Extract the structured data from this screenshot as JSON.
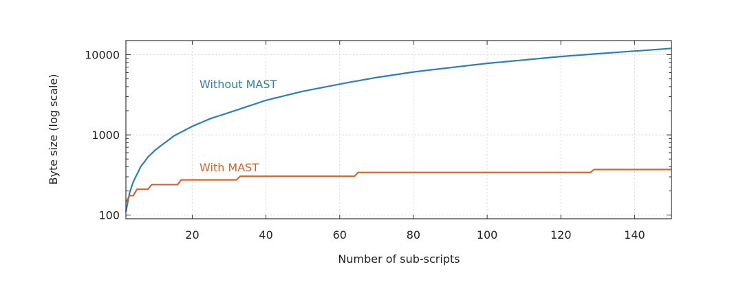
{
  "chart_data": {
    "type": "line",
    "xlabel": "Number of sub-scripts",
    "ylabel": "Byte size (log scale)",
    "xlim": [
      2,
      150
    ],
    "ylim": [
      90,
      15000
    ],
    "yscale": "log",
    "grid": true,
    "x_ticks": [
      20,
      40,
      60,
      80,
      100,
      120,
      140
    ],
    "y_ticks": [
      100,
      1000,
      10000
    ],
    "series": [
      {
        "name": "Without MAST",
        "color": "#2a7fb8",
        "x": [
          2,
          3,
          4,
          6,
          8,
          10,
          15,
          20,
          25,
          30,
          40,
          50,
          60,
          70,
          80,
          90,
          100,
          110,
          120,
          130,
          140,
          150
        ],
        "y": [
          110,
          190,
          260,
          400,
          530,
          650,
          970,
          1280,
          1600,
          1900,
          2700,
          3500,
          4300,
          5200,
          6100,
          6900,
          7800,
          8600,
          9500,
          10300,
          11100,
          12000
        ]
      },
      {
        "name": "With MAST",
        "color": "#d9622b",
        "step": true,
        "x": [
          2,
          3,
          4,
          5,
          8,
          9,
          16,
          17,
          32,
          33,
          64,
          65,
          128,
          129,
          150
        ],
        "y": [
          145,
          175,
          175,
          210,
          210,
          240,
          240,
          275,
          275,
          305,
          305,
          340,
          340,
          370,
          370
        ]
      }
    ]
  }
}
